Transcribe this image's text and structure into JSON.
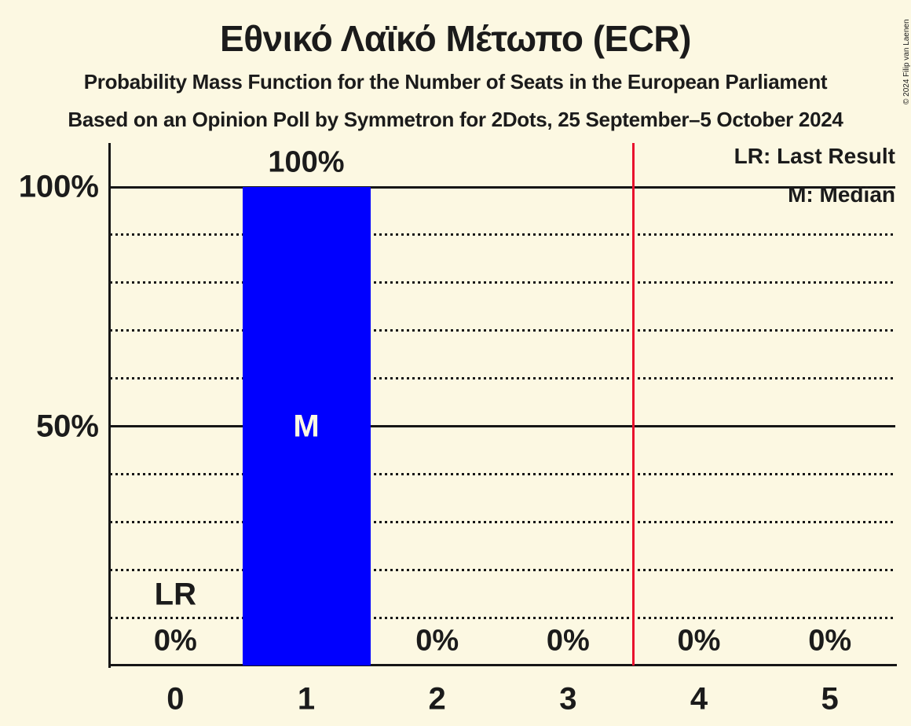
{
  "header": {
    "title": "Εθνικό Λαϊκό Μέτωπο (ECR)",
    "subtitle1": "Probability Mass Function for the Number of Seats in the European Parliament",
    "subtitle2": "Based on an Opinion Poll by Symmetron for 2Dots, 25 September–5 October 2024",
    "copyright": "© 2024 Filip van Laenen"
  },
  "legend": {
    "last_result": "LR: Last Result",
    "median": "M: Median"
  },
  "colors": {
    "background": "#FCF8E2",
    "bar": "#0000FF",
    "bar_text": "#FCF8E2",
    "majority_line": "#E8112D",
    "text": "#1B1B1B"
  },
  "chart_data": {
    "type": "bar",
    "title": "Εθνικό Λαϊκό Μέτωπο (ECR)",
    "xlabel": "",
    "ylabel": "",
    "categories": [
      "0",
      "1",
      "2",
      "3",
      "4",
      "5"
    ],
    "values": [
      0,
      100,
      0,
      0,
      0,
      0
    ],
    "bar_labels": [
      "0%",
      "100%",
      "0%",
      "0%",
      "0%",
      "0%"
    ],
    "ylim": [
      0,
      109
    ],
    "grid": "horizontal",
    "legend_position": "top-right",
    "y_axis": {
      "ticks": [
        {
          "value": 100,
          "label": "100%"
        },
        {
          "value": 50,
          "label": "50%"
        }
      ],
      "solid_gridlines": [
        100,
        50
      ],
      "dotted_gridlines": [
        90,
        80,
        70,
        60,
        40,
        30,
        20,
        10
      ]
    },
    "annotations": {
      "last_result_label": "LR",
      "last_result_seats": "0",
      "median_label": "M",
      "median_seats": "1",
      "majority_line_seats": 3.5
    }
  }
}
